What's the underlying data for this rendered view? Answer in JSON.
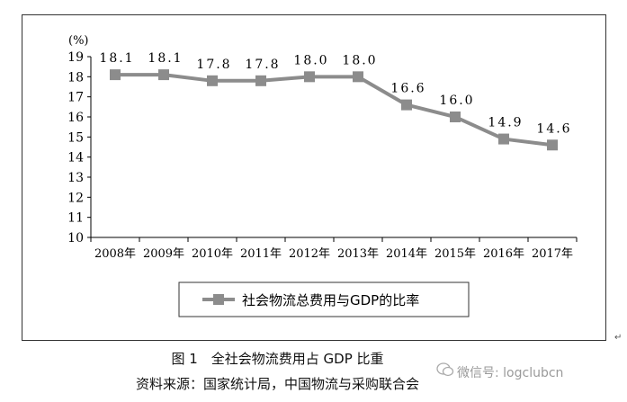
{
  "chart_data": {
    "type": "line",
    "unit_label": "(%)",
    "categories": [
      "2008年",
      "2009年",
      "2010年",
      "2011年",
      "2012年",
      "2013年",
      "2014年",
      "2015年",
      "2016年",
      "2017年"
    ],
    "series": [
      {
        "name": "社会物流总费用与GDP的比率",
        "values": [
          18.1,
          18.1,
          17.8,
          17.8,
          18.0,
          18.0,
          16.6,
          16.0,
          14.9,
          14.6
        ]
      }
    ],
    "data_labels": [
      "18.1",
      "18.1",
      "17.8",
      "17.8",
      "18.0",
      "18.0",
      "16.6",
      "16.0",
      "14.9",
      "14.6"
    ],
    "ylim": [
      10,
      19
    ],
    "yticks": [
      10,
      11,
      12,
      13,
      14,
      15,
      16,
      17,
      18,
      19
    ],
    "grid": false,
    "legend_position": "bottom-center",
    "colors": {
      "line": "#8c8c8c",
      "marker": "#8c8c8c",
      "axis": "#000000"
    }
  },
  "caption": {
    "title": "图 1　全社会物流费用占 GDP 比重",
    "source": "资料来源：国家统计局，中国物流与采购联合会"
  },
  "watermark": {
    "text": "微信号: logclubcn"
  }
}
